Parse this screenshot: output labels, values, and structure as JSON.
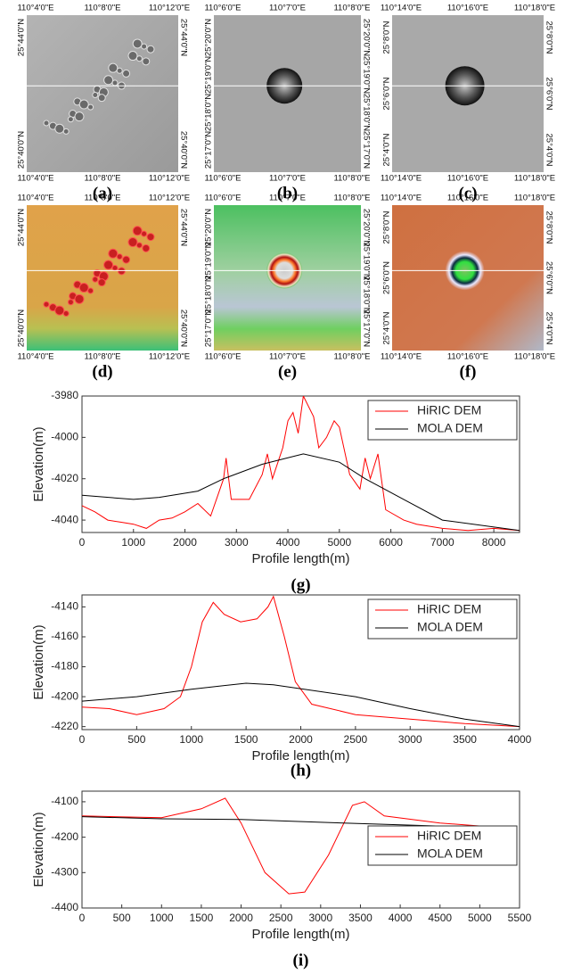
{
  "panels": [
    {
      "caption": "(a)",
      "top": [
        "110°4'0\"E",
        "110°8'0\"E",
        "110°12'0\"E"
      ],
      "bottom": [
        "110°4'0\"E",
        "110°8'0\"E",
        "110°12'0\"E"
      ],
      "left": [
        "25°44'0\"N",
        "25°40'0\"N"
      ],
      "right": [
        "25°44'0\"N",
        "25°40'0\"N"
      ]
    },
    {
      "caption": "(b)",
      "top": [
        "110°6'0\"E",
        "110°7'0\"E",
        "110°8'0\"E"
      ],
      "bottom": [
        "110°6'0\"E",
        "110°7'0\"E",
        "110°8'0\"E"
      ],
      "left": [
        "25°20'0\"N",
        "25°19'0\"N",
        "25°18'0\"N",
        "25°17'0\"N"
      ],
      "right": [
        "25°20'0\"N",
        "25°19'0\"N",
        "25°18'0\"N",
        "25°17'0\"N"
      ]
    },
    {
      "caption": "(c)",
      "top": [
        "110°14'0\"E",
        "110°16'0\"E",
        "110°18'0\"E"
      ],
      "bottom": [
        "110°14'0\"E",
        "110°16'0\"E",
        "110°18'0\"E"
      ],
      "left": [
        "25°8'0\"N",
        "25°6'0\"N",
        "25°4'0\"N"
      ],
      "right": [
        "25°8'0\"N",
        "25°6'0\"N",
        "25°4'0\"N"
      ]
    },
    {
      "caption": "(d)",
      "top": [
        "110°4'0\"E",
        "110°8'0\"E",
        "110°12'0\"E"
      ],
      "bottom": [
        "110°4'0\"E",
        "110°8'0\"E",
        "110°12'0\"E"
      ],
      "left": [
        "25°44'0\"N",
        "25°40'0\"N"
      ],
      "right": [
        "25°44'0\"N",
        "25°40'0\"N"
      ]
    },
    {
      "caption": "(e)",
      "top": [
        "110°6'0\"E",
        "110°7'0\"E",
        "110°8'0\"E"
      ],
      "bottom": [
        "110°6'0\"E",
        "110°7'0\"E",
        "110°8'0\"E"
      ],
      "left": [
        "25°20'0\"N",
        "25°19'0\"N",
        "25°18'0\"N",
        "25°17'0\"N"
      ],
      "right": [
        "25°20'0\"N",
        "25°19'0\"N",
        "25°18'0\"N",
        "25°17'0\"N"
      ]
    },
    {
      "caption": "(f)",
      "top": [
        "110°14'0\"E",
        "110°16'0\"E",
        "110°18'0\"E"
      ],
      "bottom": [
        "110°14'0\"E",
        "110°16'0\"E",
        "110°18'0\"E"
      ],
      "left": [
        "25°8'0\"N",
        "25°6'0\"N",
        "25°4'0\"N"
      ],
      "right": [
        "25°8'0\"N",
        "25°6'0\"N",
        "25°4'0\"N"
      ]
    }
  ],
  "chart_data": [
    {
      "type": "line",
      "caption": "(g)",
      "x_label": "Profile length(m)",
      "y_label": "Elevation(m)",
      "legend": "upper right",
      "xlim": [
        0,
        8500
      ],
      "xticks": [
        0,
        1000,
        2000,
        3000,
        4000,
        5000,
        6000,
        7000,
        8000
      ],
      "ylim": [
        -4046,
        -3980
      ],
      "yticks": [
        -3980,
        -4000,
        -4020,
        -4040
      ],
      "series": [
        {
          "name": "HiRIC DEM",
          "color": "#ff0000",
          "x": [
            0,
            250,
            500,
            750,
            1000,
            1250,
            1500,
            1750,
            2000,
            2250,
            2500,
            2750,
            2800,
            2900,
            3250,
            3500,
            3600,
            3700,
            3900,
            4000,
            4100,
            4200,
            4300,
            4500,
            4600,
            4750,
            4900,
            5000,
            5200,
            5400,
            5500,
            5600,
            5750,
            5900,
            6250,
            6500,
            7000,
            7500,
            8000,
            8500
          ],
          "values": [
            -4033,
            -4036,
            -4040,
            -4041,
            -4042,
            -4044,
            -4040,
            -4039,
            -4036,
            -4032,
            -4038,
            -4020,
            -4010,
            -4030,
            -4030,
            -4018,
            -4008,
            -4020,
            -4005,
            -3992,
            -3988,
            -3998,
            -3980,
            -3990,
            -4005,
            -4000,
            -3992,
            -3995,
            -4018,
            -4025,
            -4010,
            -4020,
            -4008,
            -4035,
            -4040,
            -4042,
            -4044,
            -4045,
            -4044,
            -4045
          ]
        },
        {
          "name": "MOLA DEM",
          "color": "#000000",
          "x": [
            0,
            1000,
            1500,
            2250,
            2750,
            3500,
            4300,
            5000,
            5500,
            6250,
            7000,
            8500
          ],
          "values": [
            -4028,
            -4030,
            -4029,
            -4026,
            -4020,
            -4013,
            -4008,
            -4012,
            -4020,
            -4030,
            -4040,
            -4045
          ]
        }
      ]
    },
    {
      "type": "line",
      "caption": "(h)",
      "x_label": "Profile length(m)",
      "y_label": "Elevation(m)",
      "legend": "upper right",
      "xlim": [
        0,
        4000
      ],
      "xticks": [
        0,
        500,
        1000,
        1500,
        2000,
        2500,
        3000,
        3500,
        4000
      ],
      "ylim": [
        -4222,
        -4132
      ],
      "yticks": [
        -4140,
        -4160,
        -4180,
        -4200,
        -4220
      ],
      "series": [
        {
          "name": "HiRIC DEM",
          "color": "#ff0000",
          "x": [
            0,
            250,
            500,
            750,
            900,
            1000,
            1100,
            1200,
            1300,
            1450,
            1600,
            1700,
            1750,
            1850,
            1950,
            2100,
            2500,
            3000,
            3500,
            4000
          ],
          "values": [
            -4207,
            -4208,
            -4212,
            -4208,
            -4200,
            -4180,
            -4150,
            -4137,
            -4145,
            -4150,
            -4148,
            -4140,
            -4133,
            -4160,
            -4190,
            -4205,
            -4212,
            -4215,
            -4218,
            -4220
          ]
        },
        {
          "name": "MOLA DEM",
          "color": "#000000",
          "x": [
            0,
            500,
            1000,
            1500,
            1750,
            2500,
            3000,
            3500,
            4000
          ],
          "values": [
            -4203,
            -4200,
            -4195,
            -4191,
            -4192,
            -4200,
            -4208,
            -4215,
            -4220
          ]
        }
      ]
    },
    {
      "type": "line",
      "caption": "(i)",
      "x_label": "Profile length(m)",
      "y_label": "Elevation(m)",
      "legend": "lower right",
      "xlim": [
        0,
        5500
      ],
      "xticks": [
        0,
        500,
        1000,
        1500,
        2000,
        2500,
        3000,
        3500,
        4000,
        4500,
        5000,
        5500
      ],
      "ylim": [
        -4400,
        -4070
      ],
      "yticks": [
        -4100,
        -4200,
        -4300,
        -4400
      ],
      "series": [
        {
          "name": "HiRIC DEM",
          "color": "#ff0000",
          "x": [
            0,
            1000,
            1500,
            1800,
            2000,
            2300,
            2600,
            2800,
            3100,
            3400,
            3550,
            3800,
            4500,
            5400
          ],
          "values": [
            -4140,
            -4145,
            -4120,
            -4090,
            -4160,
            -4300,
            -4360,
            -4355,
            -4250,
            -4110,
            -4100,
            -4140,
            -4160,
            -4175
          ]
        },
        {
          "name": "MOLA DEM",
          "color": "#000000",
          "x": [
            0,
            1000,
            2000,
            3000,
            4000,
            5400
          ],
          "values": [
            -4142,
            -4148,
            -4150,
            -4158,
            -4165,
            -4175
          ]
        }
      ]
    }
  ]
}
